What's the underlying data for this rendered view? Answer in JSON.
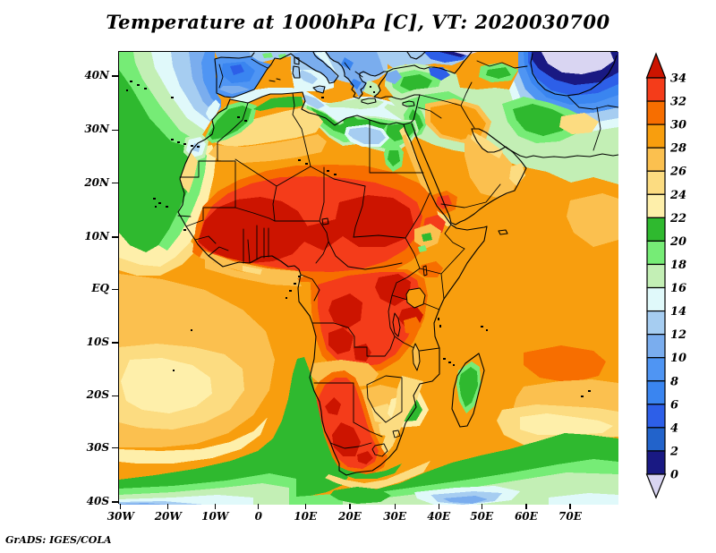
{
  "title": "Temperature at 1000hPa [C], VT: 2020030700",
  "credit": "GrADS: IGES/COLA",
  "axes": {
    "lat_ticks": [
      {
        "label": "40N",
        "pct": 5.5
      },
      {
        "label": "30N",
        "pct": 17.4
      },
      {
        "label": "20N",
        "pct": 29.2
      },
      {
        "label": "10N",
        "pct": 41.1
      },
      {
        "label": "EQ",
        "pct": 52.6
      },
      {
        "label": "10S",
        "pct": 64.4
      },
      {
        "label": "20S",
        "pct": 76.1
      },
      {
        "label": "30S",
        "pct": 87.7
      },
      {
        "label": "40S",
        "pct": 99.6
      }
    ],
    "lon_ticks": [
      {
        "label": "30W",
        "pct": 0.5
      },
      {
        "label": "20W",
        "pct": 10.0
      },
      {
        "label": "10W",
        "pct": 19.4
      },
      {
        "label": "0",
        "pct": 28.1
      },
      {
        "label": "10E",
        "pct": 37.5
      },
      {
        "label": "20E",
        "pct": 46.4
      },
      {
        "label": "30E",
        "pct": 55.4
      },
      {
        "label": "40E",
        "pct": 64.2
      },
      {
        "label": "50E",
        "pct": 72.8
      },
      {
        "label": "60E",
        "pct": 81.7
      },
      {
        "label": "70E",
        "pct": 90.5
      }
    ]
  },
  "colorbar": {
    "labels": [
      "34",
      "32",
      "30",
      "28",
      "26",
      "24",
      "22",
      "20",
      "18",
      "16",
      "14",
      "12",
      "10",
      "8",
      "6",
      "4",
      "2",
      "0"
    ],
    "colors": [
      "#f43c1a",
      "#f76e00",
      "#f89e0e",
      "#fbc04f",
      "#fcdc81",
      "#feefaa",
      "#2fb92f",
      "#76ec76",
      "#c3efb5",
      "#e0f9fa",
      "#a6cdf1",
      "#7aadee",
      "#4f95f3",
      "#3a85f0",
      "#2d5fe8",
      "#2263cb",
      "#191983"
    ],
    "arrow_top": "#cc1400",
    "arrow_bottom": "#d9d5f2"
  },
  "palette": {
    "neg": "#d9d5f2",
    "p0": "#191983",
    "p2": "#2263cb",
    "p4": "#2d5fe8",
    "p6": "#3a85f0",
    "p8": "#4f95f3",
    "p10": "#7aadee",
    "p12": "#a6cdf1",
    "p14": "#e0f9fa",
    "p16": "#c3efb5",
    "p18": "#76ec76",
    "p20": "#2fb92f",
    "p22": "#feefaa",
    "p24": "#fcdc81",
    "p26": "#fbc04f",
    "p28": "#f89e0e",
    "p30": "#f76e00",
    "p32": "#f43c1a",
    "p34": "#cc1400"
  },
  "chart_data": {
    "type": "heatmap",
    "title": "Temperature at 1000hPa [C], VT: 2020030700",
    "variable": "Air temperature",
    "pressure_level": "1000hPa",
    "units": "C",
    "valid_time": "2020030700",
    "region": "Africa, southern Europe and Middle East, approx 30W-75E, 40S-45N",
    "x_tick_labels": [
      "30W",
      "20W",
      "10W",
      "0",
      "10E",
      "20E",
      "30E",
      "40E",
      "50E",
      "60E",
      "70E"
    ],
    "y_tick_labels": [
      "40N",
      "30N",
      "20N",
      "10N",
      "EQ",
      "10S",
      "20S",
      "30S",
      "40S"
    ],
    "contour_levels": [
      0,
      2,
      4,
      6,
      8,
      10,
      12,
      14,
      16,
      18,
      20,
      22,
      24,
      26,
      28,
      30,
      32,
      34
    ],
    "colors_low_to_high": [
      "#d9d5f2",
      "#191983",
      "#2263cb",
      "#2d5fe8",
      "#3a85f0",
      "#4f95f3",
      "#7aadee",
      "#a6cdf1",
      "#e0f9fa",
      "#c3efb5",
      "#76ec76",
      "#2fb92f",
      "#feefaa",
      "#fcdc81",
      "#fbc04f",
      "#f89e0e",
      "#f76e00",
      "#f43c1a",
      "#cc1400"
    ],
    "legend_position": "right vertical colorbar with end arrows",
    "grid": false,
    "notable_features": [
      "Heat maximum above 32-34C across the Sahel from Senegal/Mali through Chad to Sudan",
      "Second 32-34C core over the Congo Basin and NE DRC",
      "Hot core over coastal Namibia and interior western South Africa",
      "Green 16-22C belt along the Libya/Egypt coast, Levant, Turkey and Iranian plateau",
      "Cold below 16C over Iberia and the Mediterranean; below 0C (lavender) near the Caspian and eastern Black Sea",
      "Green 18-22C water off NW Africa (Canary current) and a green Benguela wedge off Namibia",
      "Southern Ocean bands cooling from green through pale blue toward 40S",
      "Madagascar orange with a cooler green interior"
    ]
  }
}
